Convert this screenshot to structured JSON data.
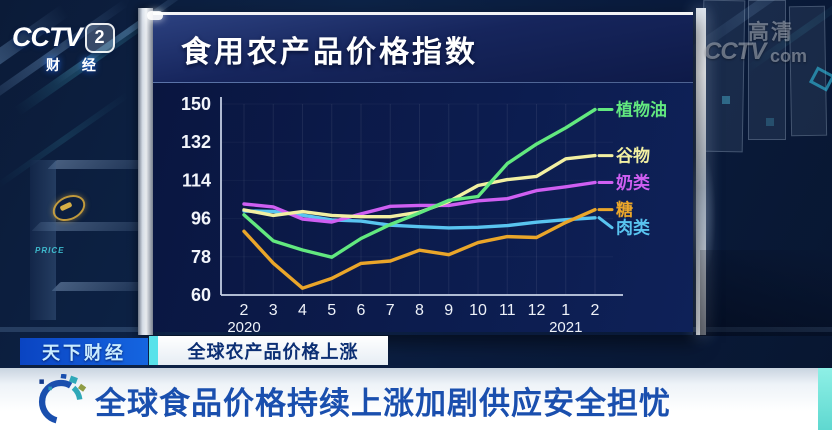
{
  "station": {
    "logo_word": "CCTV",
    "logo_channel": "2",
    "logo_sub": "财 经"
  },
  "watermark": {
    "hd": "高清",
    "main": "CCTV",
    "suffix": "com"
  },
  "panel": {
    "title": "食用农产品价格指数"
  },
  "chart_data": {
    "type": "line",
    "title": "食用农产品价格指数",
    "x_categories": [
      "2",
      "3",
      "4",
      "5",
      "6",
      "7",
      "8",
      "9",
      "10",
      "11",
      "12",
      "1",
      "2"
    ],
    "x_year_labels": [
      {
        "index": 0,
        "label": "2020"
      },
      {
        "index": 11,
        "label": "2021"
      }
    ],
    "yticks": [
      150,
      132,
      114,
      96,
      78,
      60
    ],
    "ylim": [
      60,
      150
    ],
    "grid": "faint vertical monthly gridlines",
    "legend_position": "right-of-line-ends",
    "series": [
      {
        "name": "植物油",
        "color": "#62e87f",
        "values": [
          97.8,
          85.5,
          81.2,
          77.8,
          86.6,
          93.2,
          98.7,
          104.6,
          106.4,
          121.9,
          131.1,
          138.8,
          147.4
        ]
      },
      {
        "name": "谷物",
        "color": "#f2f0a2",
        "values": [
          100.1,
          97.5,
          99.3,
          97.5,
          96.9,
          96.9,
          99.0,
          104.0,
          111.6,
          114.4,
          115.9,
          124.2,
          125.7
        ]
      },
      {
        "name": "奶类",
        "color": "#cf5ff2",
        "values": [
          102.9,
          101.5,
          95.8,
          94.4,
          98.2,
          101.8,
          102.2,
          102.2,
          104.4,
          105.4,
          109.2,
          111.0,
          113.0
        ]
      },
      {
        "name": "糖",
        "color": "#eaa62a",
        "values": [
          90.0,
          75.0,
          63.2,
          67.8,
          74.9,
          76.0,
          81.1,
          79.0,
          84.7,
          87.5,
          87.1,
          94.2,
          100.2
        ]
      },
      {
        "name": "肉类",
        "color": "#59c4f0",
        "values": [
          99.6,
          99.4,
          97.6,
          95.4,
          94.8,
          92.9,
          92.2,
          91.6,
          91.9,
          92.7,
          94.3,
          95.5,
          96.4
        ]
      }
    ]
  },
  "ticker": {
    "program_badge": "天下财经",
    "topic_badge": "全球农产品价格上涨",
    "headline": "全球食品价格持续上涨加剧供应安全担忧"
  },
  "background": {
    "decor_text": "PRICE"
  },
  "colors": {
    "program_badge_bg": "#0d52cc",
    "separator_cyan": "#58e2ea",
    "right_stripe_cyan": "#7ceee4",
    "headline_text": "#1a4fae",
    "badge_text_dark": "#0c2f74",
    "panel_bg": "#0c1c4e",
    "axis": "#ccd6ea"
  }
}
